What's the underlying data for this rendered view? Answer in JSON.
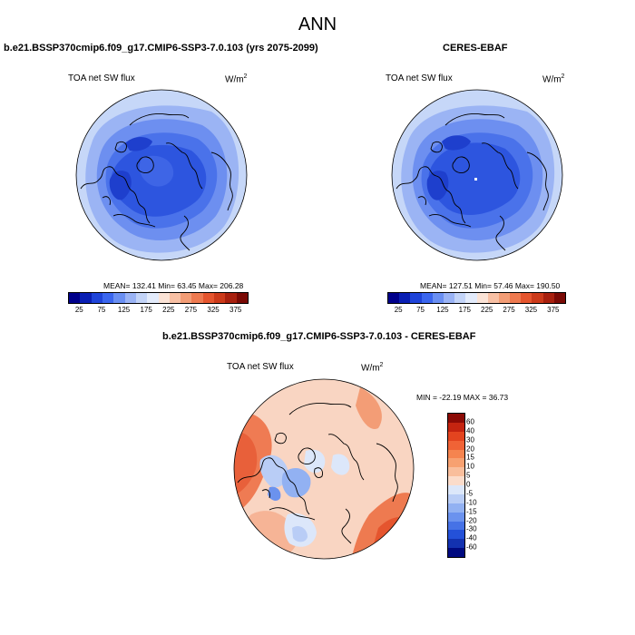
{
  "figure": {
    "title": "ANN"
  },
  "panels": {
    "test": {
      "case_title": "b.e21.BSSP370cmip6.f09_g17.CMIP6-SSP3-7.0.103 (yrs 2075-2099)",
      "variable": "TOA net SW flux",
      "units_base": "W/m",
      "units_exp": "2",
      "stats": "MEAN= 132.41  Min=  63.45  Max= 206.28"
    },
    "obs": {
      "case_title": "CERES-EBAF",
      "variable": "TOA net SW flux",
      "units_base": "W/m",
      "units_exp": "2",
      "stats": "MEAN= 127.51  Min=  57.46  Max= 190.50"
    },
    "diff": {
      "case_title": "b.e21.BSSP370cmip6.f09_g17.CMIP6-SSP3-7.0.103 - CERES-EBAF",
      "variable": "TOA net SW flux",
      "units_base": "W/m",
      "units_exp": "2",
      "stats": "MIN = -22.19 MAX =  36.73"
    }
  },
  "colorbars": {
    "absolute": {
      "tick_labels": [
        "25",
        "75",
        "125",
        "175",
        "225",
        "275",
        "325",
        "375"
      ],
      "colors": [
        "#00008b",
        "#0a1fb4",
        "#1f44d9",
        "#3b66ee",
        "#6a8ff2",
        "#9ab3f5",
        "#c3d4f8",
        "#e3ebfb",
        "#fbe3d6",
        "#f8c0a4",
        "#f39d76",
        "#ee7a50",
        "#e5552e",
        "#cc3a1a",
        "#a8200e",
        "#7a0a05"
      ]
    },
    "difference": {
      "tick_labels": [
        "60",
        "40",
        "30",
        "20",
        "15",
        "10",
        "5",
        "0",
        "-5",
        "-10",
        "-15",
        "-20",
        "-30",
        "-40",
        "-60"
      ],
      "colors": [
        "#8b0a05",
        "#c42410",
        "#e3441f",
        "#f06336",
        "#f5844f",
        "#f7a171",
        "#f9be9c",
        "#fbdccb",
        "#dce7fa",
        "#b9cdf6",
        "#92b1f2",
        "#6b92ee",
        "#4672e6",
        "#2451d8",
        "#1332b0",
        "#000a80"
      ]
    }
  },
  "map_colors": {
    "abs_outer": "#c6d7f8",
    "abs_ring2": "#9bb4f4",
    "abs_ring3": "#6d8ff0",
    "abs_ring4": "#4a72ea",
    "abs_core": "#2d55df",
    "abs_inner": "#1e3fcd",
    "land_line": "#000000"
  }
}
